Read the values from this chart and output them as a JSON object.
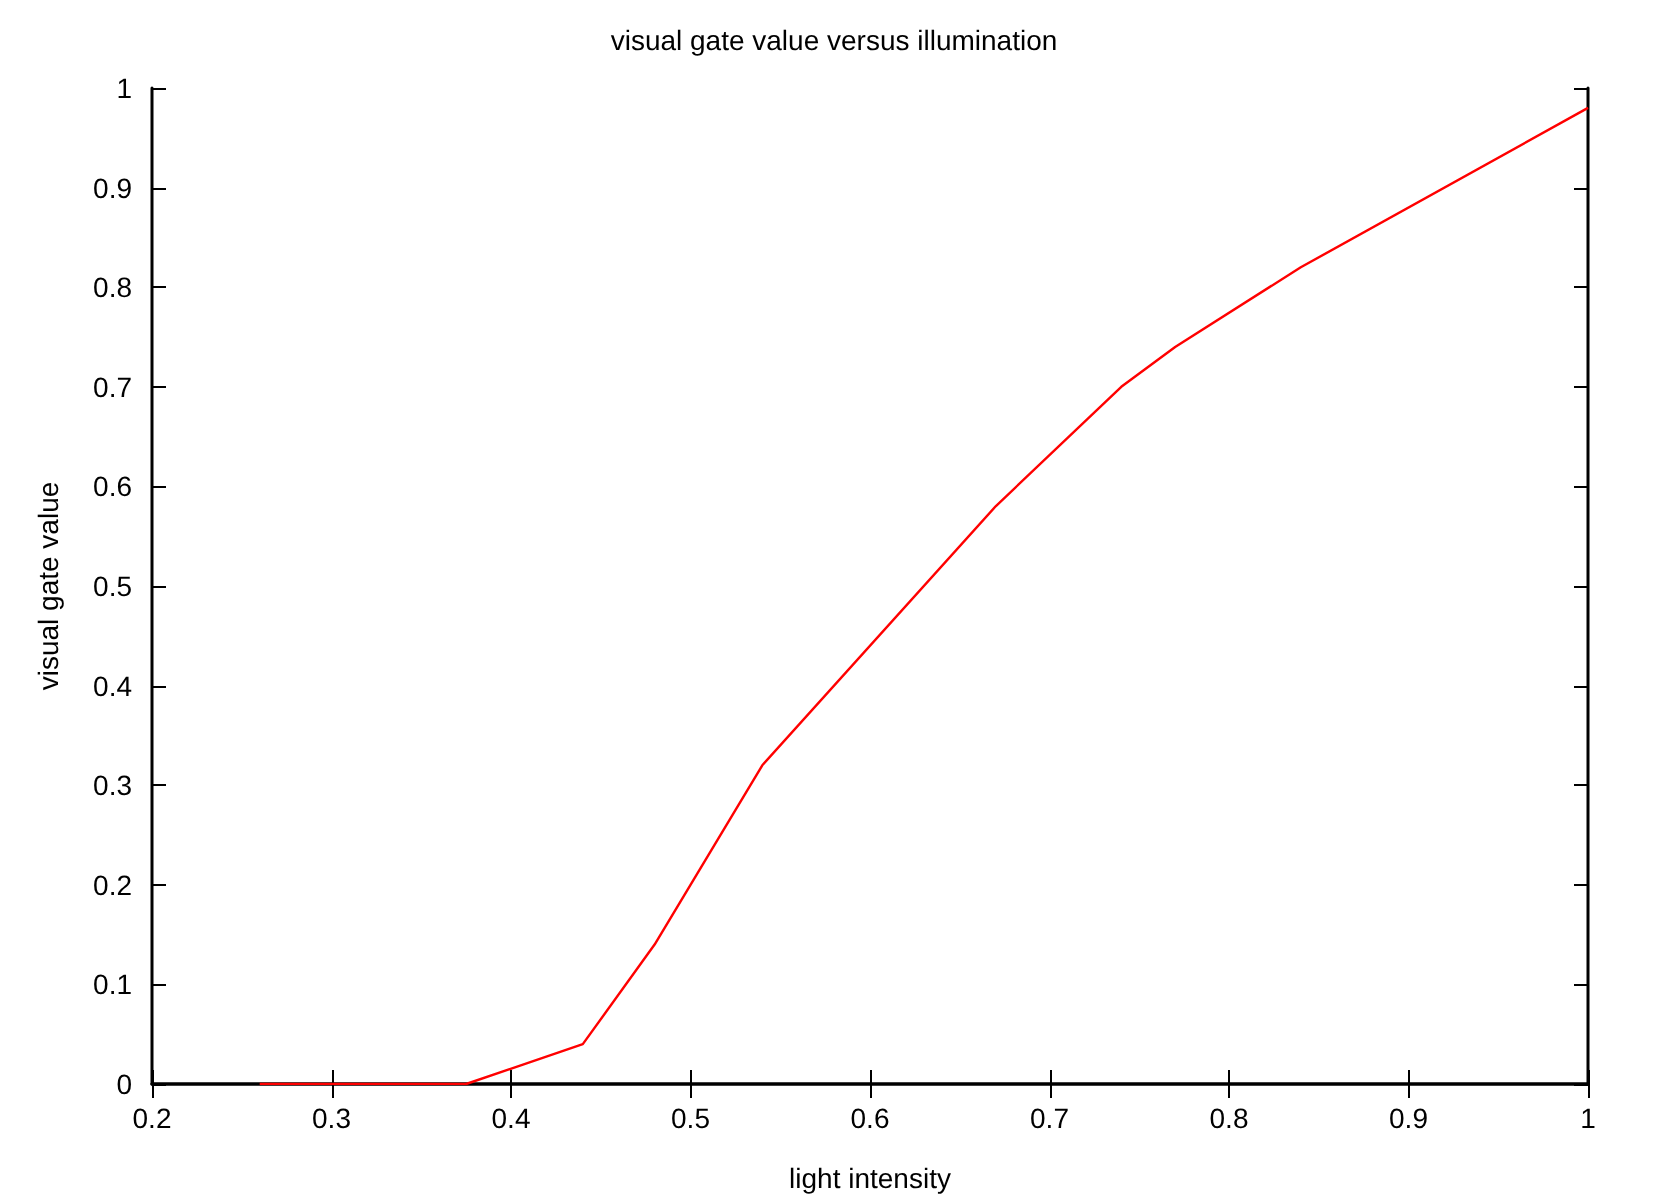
{
  "chart_data": {
    "type": "line",
    "title": "visual gate value versus illumination",
    "xlabel": "light intensity",
    "ylabel": "visual gate value",
    "x": [
      0.26,
      0.375,
      0.44,
      0.48,
      0.54,
      0.67,
      0.74,
      0.77,
      0.84,
      1.0
    ],
    "series": [
      {
        "color": "#ff0000",
        "values": [
          0,
          0,
          0.04,
          0.14,
          0.32,
          0.58,
          0.7,
          0.74,
          0.82,
          0.98
        ]
      }
    ],
    "xlim": [
      0.2,
      1
    ],
    "xticks": [
      0.2,
      0.3,
      0.4,
      0.5,
      0.6,
      0.7,
      0.8,
      0.9,
      1
    ],
    "ylim": [
      0,
      1
    ],
    "yticks": [
      0,
      0.1,
      0.2,
      0.3,
      0.4,
      0.5,
      0.6,
      0.7,
      0.8,
      0.9,
      1
    ],
    "marker": "none",
    "line_style": "solid"
  }
}
